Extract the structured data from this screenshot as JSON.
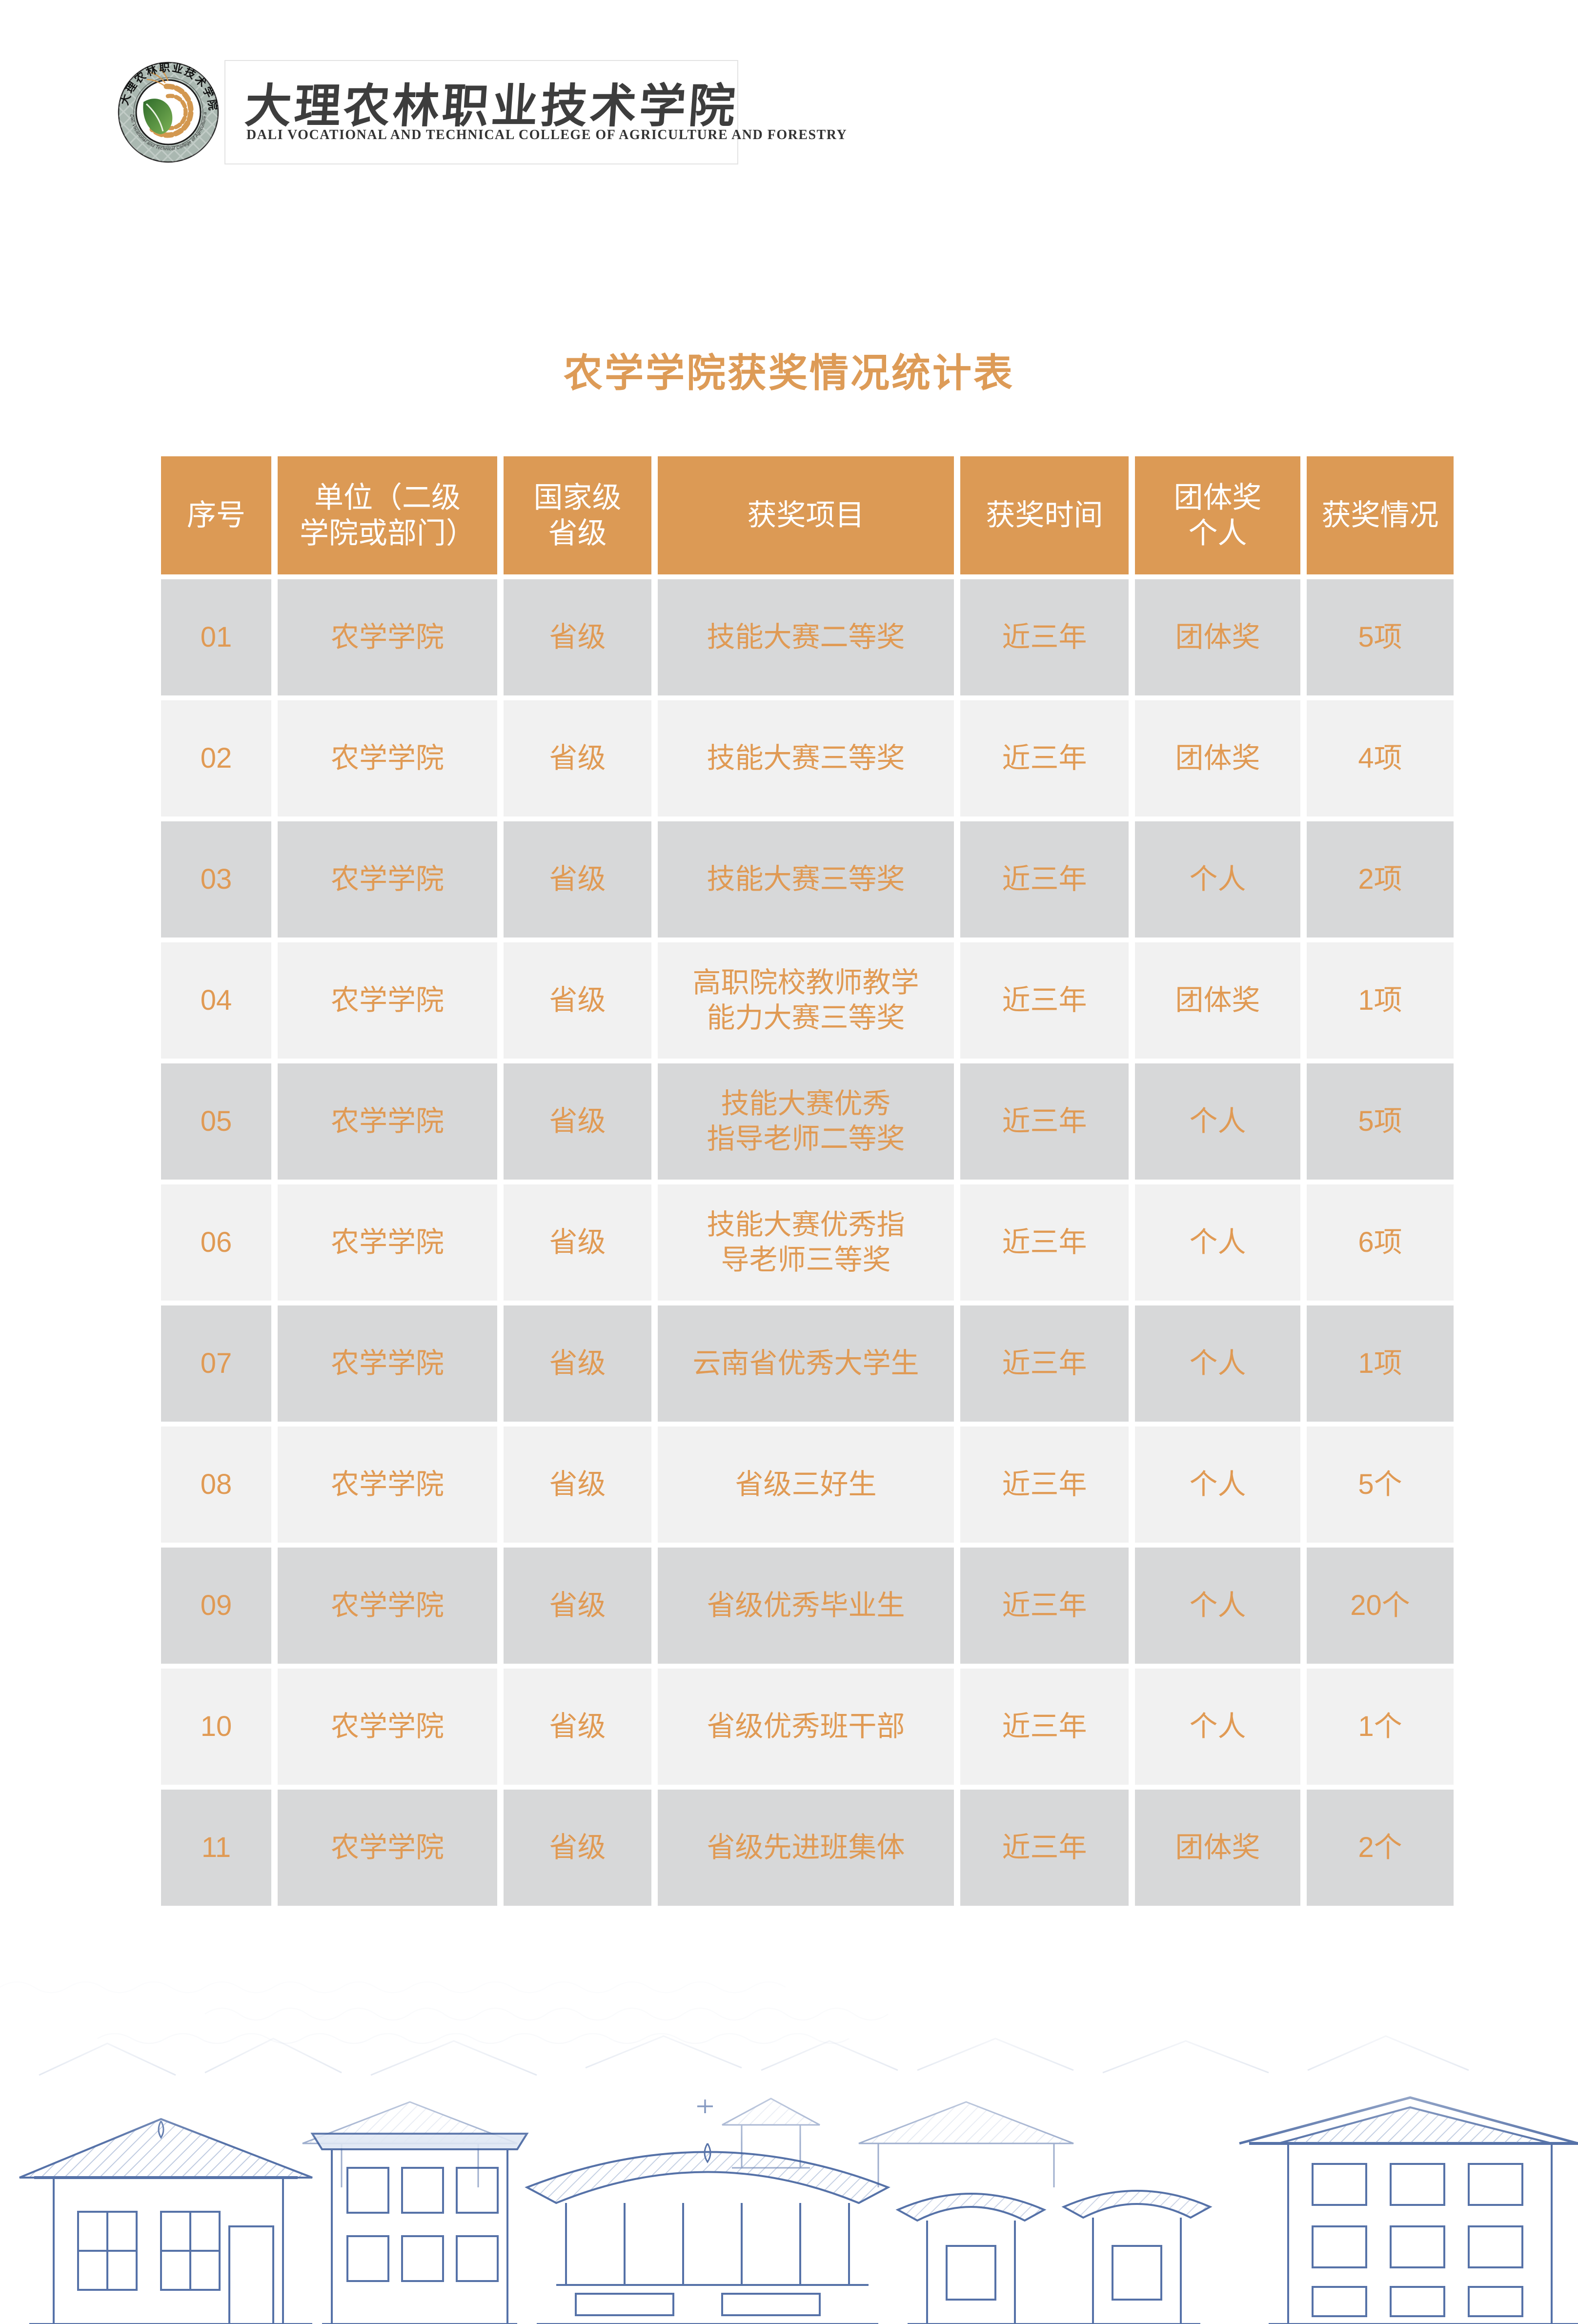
{
  "brand": {
    "college_name_zh": "大理农林职业技术学院",
    "college_name_en": "DALI VOCATIONAL AND TECHNICAL COLLEGE OF AGRICULTURE AND FORESTRY",
    "emblem": {
      "ring_text_top": "大理农林职业技术学院",
      "ring_text_bottom": "Dali Vocational and Technical College of Agriculture and Forestry"
    }
  },
  "title": "农学学院获奖情况统计表",
  "table": {
    "headers": [
      "序号",
      "单位（二级\n学院或部门）",
      "国家级\n省级",
      "获奖项目",
      "获奖时间",
      "团体奖\n个人",
      "获奖情况"
    ],
    "column_keys": [
      "index",
      "unit",
      "level",
      "project",
      "time",
      "award-type",
      "count"
    ],
    "rows": [
      [
        "01",
        "农学学院",
        "省级",
        "技能大赛二等奖",
        "近三年",
        "团体奖",
        "5项"
      ],
      [
        "02",
        "农学学院",
        "省级",
        "技能大赛三等奖",
        "近三年",
        "团体奖",
        "4项"
      ],
      [
        "03",
        "农学学院",
        "省级",
        "技能大赛三等奖",
        "近三年",
        "个人",
        "2项"
      ],
      [
        "04",
        "农学学院",
        "省级",
        "高职院校教师教学\n能力大赛三等奖",
        "近三年",
        "团体奖",
        "1项"
      ],
      [
        "05",
        "农学学院",
        "省级",
        "技能大赛优秀\n指导老师二等奖",
        "近三年",
        "个人",
        "5项"
      ],
      [
        "06",
        "农学学院",
        "省级",
        "技能大赛优秀指\n导老师三等奖",
        "近三年",
        "个人",
        "6项"
      ],
      [
        "07",
        "农学学院",
        "省级",
        "云南省优秀大学生",
        "近三年",
        "个人",
        "1项"
      ],
      [
        "08",
        "农学学院",
        "省级",
        "省级三好生",
        "近三年",
        "个人",
        "5个"
      ],
      [
        "09",
        "农学学院",
        "省级",
        "省级优秀毕业生",
        "近三年",
        "个人",
        "20个"
      ],
      [
        "10",
        "农学学院",
        "省级",
        "省级优秀班干部",
        "近三年",
        "个人",
        "1个"
      ],
      [
        "11",
        "农学学院",
        "省级",
        "省级先进班集体",
        "近三年",
        "团体奖",
        "2个"
      ]
    ]
  },
  "colors": {
    "accent_orange": "#DD9B57",
    "header_bg": "#DC9A55",
    "cell_text": "#E09A54",
    "row_dark": "#D7D8D9",
    "row_light": "#F1F1F1",
    "sketch_blue": "#3F5F9D"
  }
}
